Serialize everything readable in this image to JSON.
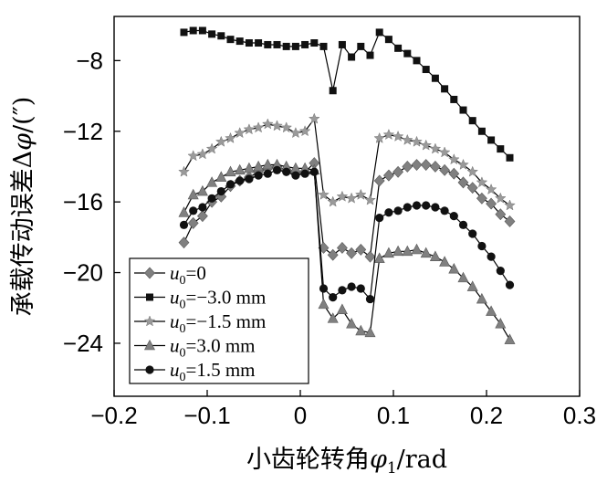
{
  "chart_data": {
    "type": "line",
    "xlabel": {
      "main": "小齿轮转角",
      "sym": "φ",
      "sub": "1",
      "unit": "/rad"
    },
    "ylabel": {
      "main": "承载传动误差Δ",
      "sym": "φ",
      "unit": "/(″)"
    },
    "xlim": [
      -0.2,
      0.3
    ],
    "ylim": [
      -27,
      -5.5
    ],
    "xticks": [
      -0.2,
      -0.1,
      0,
      0.1,
      0.2,
      0.3
    ],
    "xtick_labels": [
      "−0.2",
      "−0.1",
      "0",
      "0.1",
      "0.2",
      "0.3"
    ],
    "yticks": [
      -8,
      -12,
      -16,
      -20,
      -24
    ],
    "ytick_labels": [
      "−8",
      "−12",
      "−16",
      "−20",
      "−24"
    ],
    "grid": false,
    "legend_position": "bottom-left",
    "x": [
      -0.125,
      -0.115,
      -0.105,
      -0.095,
      -0.085,
      -0.075,
      -0.065,
      -0.055,
      -0.045,
      -0.035,
      -0.025,
      -0.015,
      -0.005,
      0.005,
      0.015,
      0.025,
      0.035,
      0.045,
      0.055,
      0.065,
      0.075,
      0.085,
      0.095,
      0.105,
      0.115,
      0.125,
      0.135,
      0.145,
      0.155,
      0.165,
      0.175,
      0.185,
      0.195,
      0.205,
      0.215,
      0.225
    ],
    "series": [
      {
        "name": "u0=0",
        "label_sym": "u",
        "label_sub": "0",
        "label_rest": "=0",
        "marker": "diamond",
        "values": [
          -18.3,
          -17.2,
          -16.8,
          -16.0,
          -15.7,
          -15.1,
          -14.8,
          -14.6,
          -14.3,
          -14.1,
          -14.0,
          -14.2,
          -14.4,
          -14.3,
          -13.8,
          -18.6,
          -19.0,
          -18.6,
          -18.9,
          -18.7,
          -19.1,
          -14.8,
          -14.5,
          -14.3,
          -14.0,
          -13.9,
          -13.9,
          -14.0,
          -14.2,
          -14.4,
          -14.9,
          -15.2,
          -15.8,
          -16.1,
          -16.7,
          -17.1
        ]
      },
      {
        "name": "u0=−3.0 mm",
        "label_sym": "u",
        "label_sub": "0",
        "label_rest": "=−3.0 mm",
        "marker": "square",
        "values": [
          -6.4,
          -6.3,
          -6.3,
          -6.5,
          -6.6,
          -6.8,
          -6.9,
          -7.0,
          -7.0,
          -7.1,
          -7.1,
          -7.2,
          -7.2,
          -7.1,
          -7.0,
          -7.2,
          -9.7,
          -7.1,
          -7.8,
          -7.2,
          -7.7,
          -6.4,
          -6.8,
          -7.3,
          -7.6,
          -8.0,
          -8.5,
          -9.0,
          -9.6,
          -10.2,
          -10.8,
          -11.4,
          -12.0,
          -12.5,
          -13.0,
          -13.5
        ]
      },
      {
        "name": "u0=−1.5 mm",
        "label_sym": "u",
        "label_sub": "0",
        "label_rest": "=−1.5 mm",
        "marker": "star",
        "values": [
          -14.3,
          -13.4,
          -13.3,
          -13.0,
          -12.6,
          -12.4,
          -12.1,
          -11.9,
          -11.8,
          -11.6,
          -11.7,
          -11.8,
          -12.1,
          -12.0,
          -11.3,
          -15.6,
          -16.0,
          -15.7,
          -15.8,
          -15.6,
          -15.9,
          -12.4,
          -12.2,
          -12.3,
          -12.5,
          -12.6,
          -12.8,
          -13.0,
          -13.2,
          -13.6,
          -13.9,
          -14.3,
          -14.9,
          -15.3,
          -15.8,
          -16.2
        ]
      },
      {
        "name": "u0=3.0 mm",
        "label_sym": "u",
        "label_sub": "0",
        "label_rest": "=3.0 mm",
        "marker": "triangle",
        "values": [
          -16.6,
          -15.6,
          -15.4,
          -14.9,
          -14.6,
          -14.3,
          -14.2,
          -14.1,
          -14.0,
          -13.9,
          -13.9,
          -14.0,
          -14.1,
          -14.1,
          -14.2,
          -21.8,
          -22.6,
          -22.1,
          -22.9,
          -23.3,
          -23.4,
          -19.2,
          -18.9,
          -18.8,
          -18.8,
          -18.7,
          -18.9,
          -19.1,
          -19.4,
          -19.8,
          -20.3,
          -20.8,
          -21.5,
          -22.2,
          -22.9,
          -23.8
        ]
      },
      {
        "name": "u0=1.5 mm",
        "label_sym": "u",
        "label_sub": "0",
        "label_rest": "=1.5 mm",
        "marker": "circle",
        "values": [
          -17.3,
          -16.5,
          -16.3,
          -15.8,
          -15.4,
          -15.0,
          -14.8,
          -14.7,
          -14.5,
          -14.4,
          -14.2,
          -14.3,
          -14.5,
          -14.4,
          -14.3,
          -20.9,
          -21.4,
          -21.0,
          -20.8,
          -20.9,
          -21.5,
          -16.9,
          -16.6,
          -16.5,
          -16.3,
          -16.2,
          -16.2,
          -16.3,
          -16.5,
          -16.8,
          -17.3,
          -17.8,
          -18.5,
          -19.1,
          -19.9,
          -20.7
        ]
      }
    ]
  }
}
